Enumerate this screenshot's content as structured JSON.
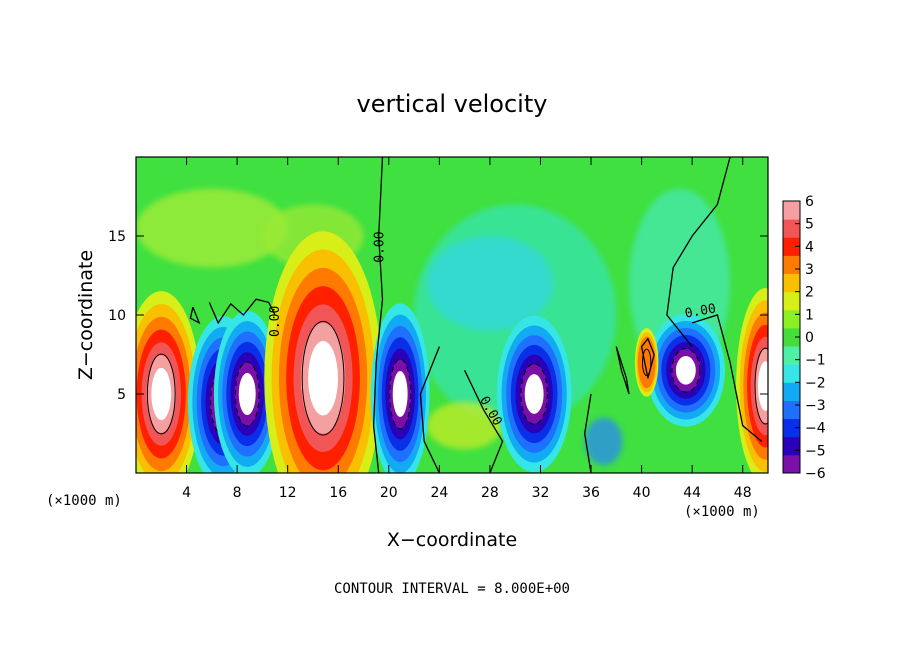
{
  "chart_data": {
    "type": "heatmap",
    "title": "vertical velocity",
    "xlabel": "X−coordinate",
    "ylabel": "Z−coordinate",
    "x_unit_label": "(×1000 m)",
    "x_range": [
      0,
      50
    ],
    "y_range": [
      0,
      20
    ],
    "x_ticks": [
      4,
      8,
      12,
      16,
      20,
      24,
      28,
      32,
      36,
      40,
      44,
      48
    ],
    "y_ticks": [
      5,
      10,
      15
    ],
    "footer": "CONTOUR INTERVAL = 8.000E+00",
    "contour_label_text": "0.00",
    "colorbar": {
      "ticks": [
        "6",
        "5",
        "4",
        "3",
        "2",
        "1",
        "0",
        "−1",
        "−2",
        "−3",
        "−4",
        "−5",
        "−6"
      ],
      "range": [
        -6,
        6
      ],
      "colors": [
        "#7a10a8",
        "#2a00b8",
        "#0a2fe8",
        "#1f70ff",
        "#12aaf2",
        "#36e6e6",
        "#4ef0a8",
        "#44dd3a",
        "#8cf020",
        "#d8ee18",
        "#f8c000",
        "#ff7a00",
        "#ff2000",
        "#f25555",
        "#f5a0a0"
      ]
    },
    "features": [
      {
        "kind": "updraft",
        "x": 2.0,
        "z": 5.0,
        "rx": 2.0,
        "rz": 4.2,
        "strength": 1.0
      },
      {
        "kind": "downdraft",
        "x": 6.9,
        "z": 4.5,
        "rx": 1.8,
        "rz": 3.5,
        "strength": -1.0
      },
      {
        "kind": "downdraft",
        "x": 8.8,
        "z": 5.0,
        "rx": 1.7,
        "rz": 3.4,
        "strength": -1.0
      },
      {
        "kind": "updraft",
        "x": 14.8,
        "z": 6.0,
        "rx": 3.0,
        "rz": 6.0,
        "strength": 1.0
      },
      {
        "kind": "downdraft",
        "x": 20.9,
        "z": 5.0,
        "rx": 1.5,
        "rz": 3.7,
        "strength": -1.0
      },
      {
        "kind": "downdraft",
        "x": 31.5,
        "z": 5.0,
        "rx": 1.9,
        "rz": 3.2,
        "strength": -1.0
      },
      {
        "kind": "downdraft",
        "x": 43.5,
        "z": 6.5,
        "rx": 2.0,
        "rz": 2.3,
        "strength": -1.0
      },
      {
        "kind": "updraft",
        "x": 40.4,
        "z": 7.0,
        "rx": 0.6,
        "rz": 1.4,
        "strength": 0.45
      },
      {
        "kind": "updraft",
        "x": 49.8,
        "z": 5.5,
        "rx": 1.5,
        "rz": 4.0,
        "strength": 1.0
      }
    ]
  }
}
